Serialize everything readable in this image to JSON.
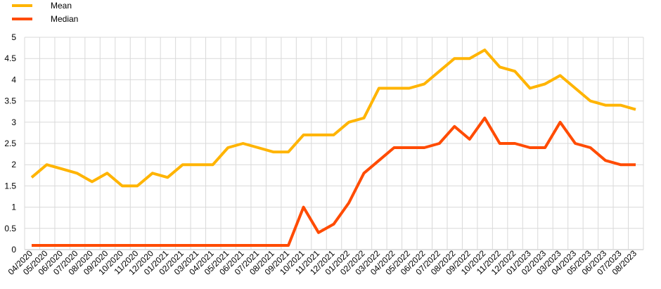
{
  "chart_data": {
    "type": "line",
    "categories": [
      "04/2020",
      "05/2020",
      "06/2020",
      "07/2020",
      "08/2020",
      "09/2020",
      "10/2020",
      "11/2020",
      "12/2020",
      "01/2021",
      "02/2021",
      "03/2021",
      "04/2021",
      "05/2021",
      "06/2021",
      "07/2021",
      "08/2021",
      "09/2021",
      "10/2021",
      "11/2021",
      "12/2021",
      "01/2022",
      "02/2022",
      "03/2022",
      "04/2022",
      "05/2022",
      "06/2022",
      "07/2022",
      "08/2022",
      "09/2022",
      "10/2022",
      "11/2022",
      "12/2022",
      "01/2023",
      "02/2023",
      "03/2023",
      "04/2023",
      "05/2023",
      "06/2023",
      "07/2023",
      "08/2023"
    ],
    "series": [
      {
        "name": "Mean",
        "color": "#FFB400",
        "values": [
          1.7,
          2.0,
          1.9,
          1.8,
          1.6,
          1.8,
          1.5,
          1.5,
          1.8,
          1.7,
          2.0,
          2.0,
          2.0,
          2.4,
          2.5,
          2.4,
          2.3,
          2.3,
          2.7,
          2.7,
          2.7,
          3.0,
          3.1,
          3.8,
          3.8,
          3.8,
          3.9,
          4.2,
          4.5,
          4.5,
          4.7,
          4.3,
          4.2,
          3.8,
          3.9,
          4.1,
          3.8,
          3.5,
          3.4,
          3.4,
          3.3
        ]
      },
      {
        "name": "Median",
        "color": "#FF4B00",
        "values": [
          0.1,
          0.1,
          0.1,
          0.1,
          0.1,
          0.1,
          0.1,
          0.1,
          0.1,
          0.1,
          0.1,
          0.1,
          0.1,
          0.1,
          0.1,
          0.1,
          0.1,
          0.1,
          1.0,
          0.4,
          0.6,
          1.1,
          1.8,
          2.1,
          2.4,
          2.4,
          2.4,
          2.5,
          2.9,
          2.6,
          3.1,
          2.5,
          2.5,
          2.4,
          2.4,
          3.0,
          2.5,
          2.4,
          2.1,
          2.0,
          2.0
        ]
      }
    ],
    "ylim": [
      0,
      5
    ],
    "yticks": [
      "0",
      "0.5",
      "1",
      "1.5",
      "2",
      "2.5",
      "3",
      "3.5",
      "4",
      "4.5",
      "5"
    ],
    "grid": true,
    "legend_position": "top-left"
  }
}
